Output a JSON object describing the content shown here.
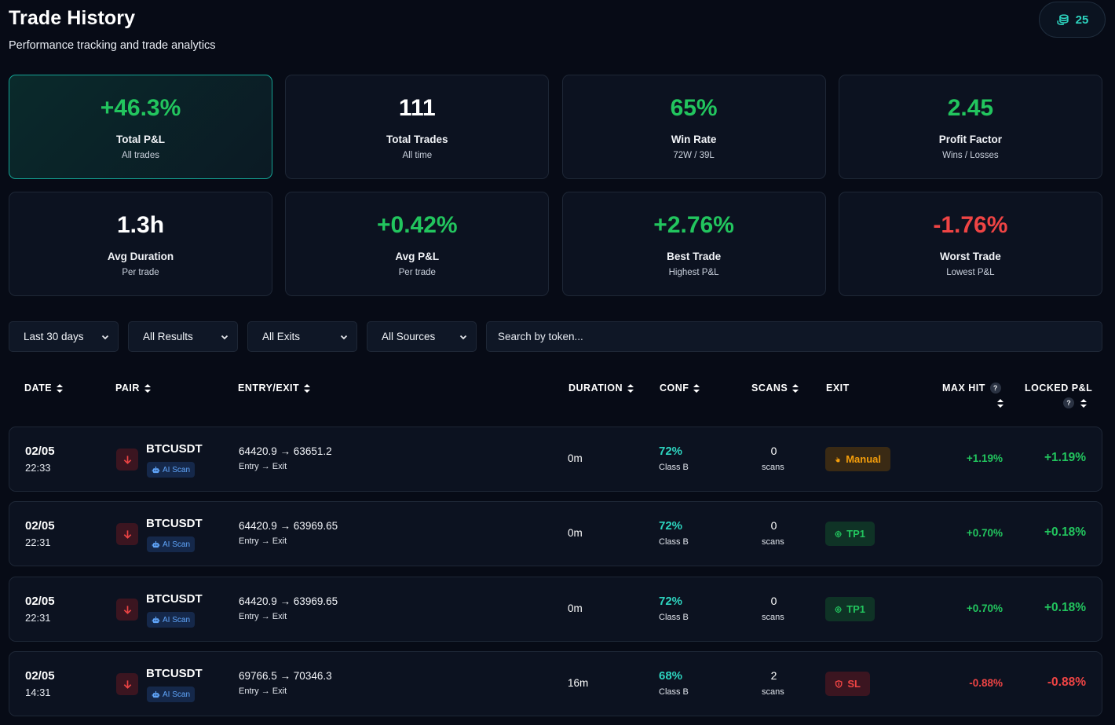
{
  "header": {
    "title": "Trade History",
    "subtitle": "Performance tracking and trade analytics",
    "credits": "25"
  },
  "stats": [
    {
      "value": "+46.3%",
      "label": "Total P&L",
      "sub": "All trades",
      "tone": "pos",
      "highlight": true
    },
    {
      "value": "111",
      "label": "Total Trades",
      "sub": "All time",
      "tone": "neutral"
    },
    {
      "value": "65%",
      "label": "Win Rate",
      "sub": "72W / 39L",
      "tone": "pos"
    },
    {
      "value": "2.45",
      "label": "Profit Factor",
      "sub": "Wins / Losses",
      "tone": "pos"
    },
    {
      "value": "1.3h",
      "label": "Avg Duration",
      "sub": "Per trade",
      "tone": "neutral"
    },
    {
      "value": "+0.42%",
      "label": "Avg P&L",
      "sub": "Per trade",
      "tone": "pos"
    },
    {
      "value": "+2.76%",
      "label": "Best Trade",
      "sub": "Highest P&L",
      "tone": "pos"
    },
    {
      "value": "-1.76%",
      "label": "Worst Trade",
      "sub": "Lowest P&L",
      "tone": "neg"
    }
  ],
  "filters": {
    "period": "Last 30 days",
    "results": "All Results",
    "exits": "All Exits",
    "sources": "All Sources",
    "search_placeholder": "Search by token..."
  },
  "columns": {
    "date": "DATE",
    "pair": "PAIR",
    "entry_exit": "ENTRY/EXIT",
    "duration": "DURATION",
    "conf": "CONF",
    "scans": "SCANS",
    "exit": "EXIT",
    "max_hit": "MAX HIT",
    "locked_pnl": "LOCKED P&L"
  },
  "trades": [
    {
      "date": "02/05",
      "time": "22:33",
      "pair": "BTCUSDT",
      "source": "AI Scan",
      "prices": "64420.9 → 63651.2",
      "prices_sub": "Entry → Exit",
      "duration": "0m",
      "conf": "72%",
      "conf_class": "Class B",
      "scans": "0",
      "scans_sub": "scans",
      "exit": "Manual",
      "exit_type": "manual",
      "max_hit": "+1.19%",
      "max_tone": "pos",
      "locked": "+1.19%",
      "locked_tone": "pos"
    },
    {
      "date": "02/05",
      "time": "22:31",
      "pair": "BTCUSDT",
      "source": "AI Scan",
      "prices": "64420.9 → 63969.65",
      "prices_sub": "Entry → Exit",
      "duration": "0m",
      "conf": "72%",
      "conf_class": "Class B",
      "scans": "0",
      "scans_sub": "scans",
      "exit": "TP1",
      "exit_type": "tp",
      "max_hit": "+0.70%",
      "max_tone": "pos",
      "locked": "+0.18%",
      "locked_tone": "pos"
    },
    {
      "date": "02/05",
      "time": "22:31",
      "pair": "BTCUSDT",
      "source": "AI Scan",
      "prices": "64420.9 → 63969.65",
      "prices_sub": "Entry → Exit",
      "duration": "0m",
      "conf": "72%",
      "conf_class": "Class B",
      "scans": "0",
      "scans_sub": "scans",
      "exit": "TP1",
      "exit_type": "tp",
      "max_hit": "+0.70%",
      "max_tone": "pos",
      "locked": "+0.18%",
      "locked_tone": "pos"
    },
    {
      "date": "02/05",
      "time": "14:31",
      "pair": "BTCUSDT",
      "source": "AI Scan",
      "prices": "69766.5 → 70346.3",
      "prices_sub": "Entry → Exit",
      "duration": "16m",
      "conf": "68%",
      "conf_class": "Class B",
      "scans": "2",
      "scans_sub": "scans",
      "exit": "SL",
      "exit_type": "sl",
      "max_hit": "-0.88%",
      "max_tone": "neg",
      "locked": "-0.88%",
      "locked_tone": "neg"
    }
  ]
}
